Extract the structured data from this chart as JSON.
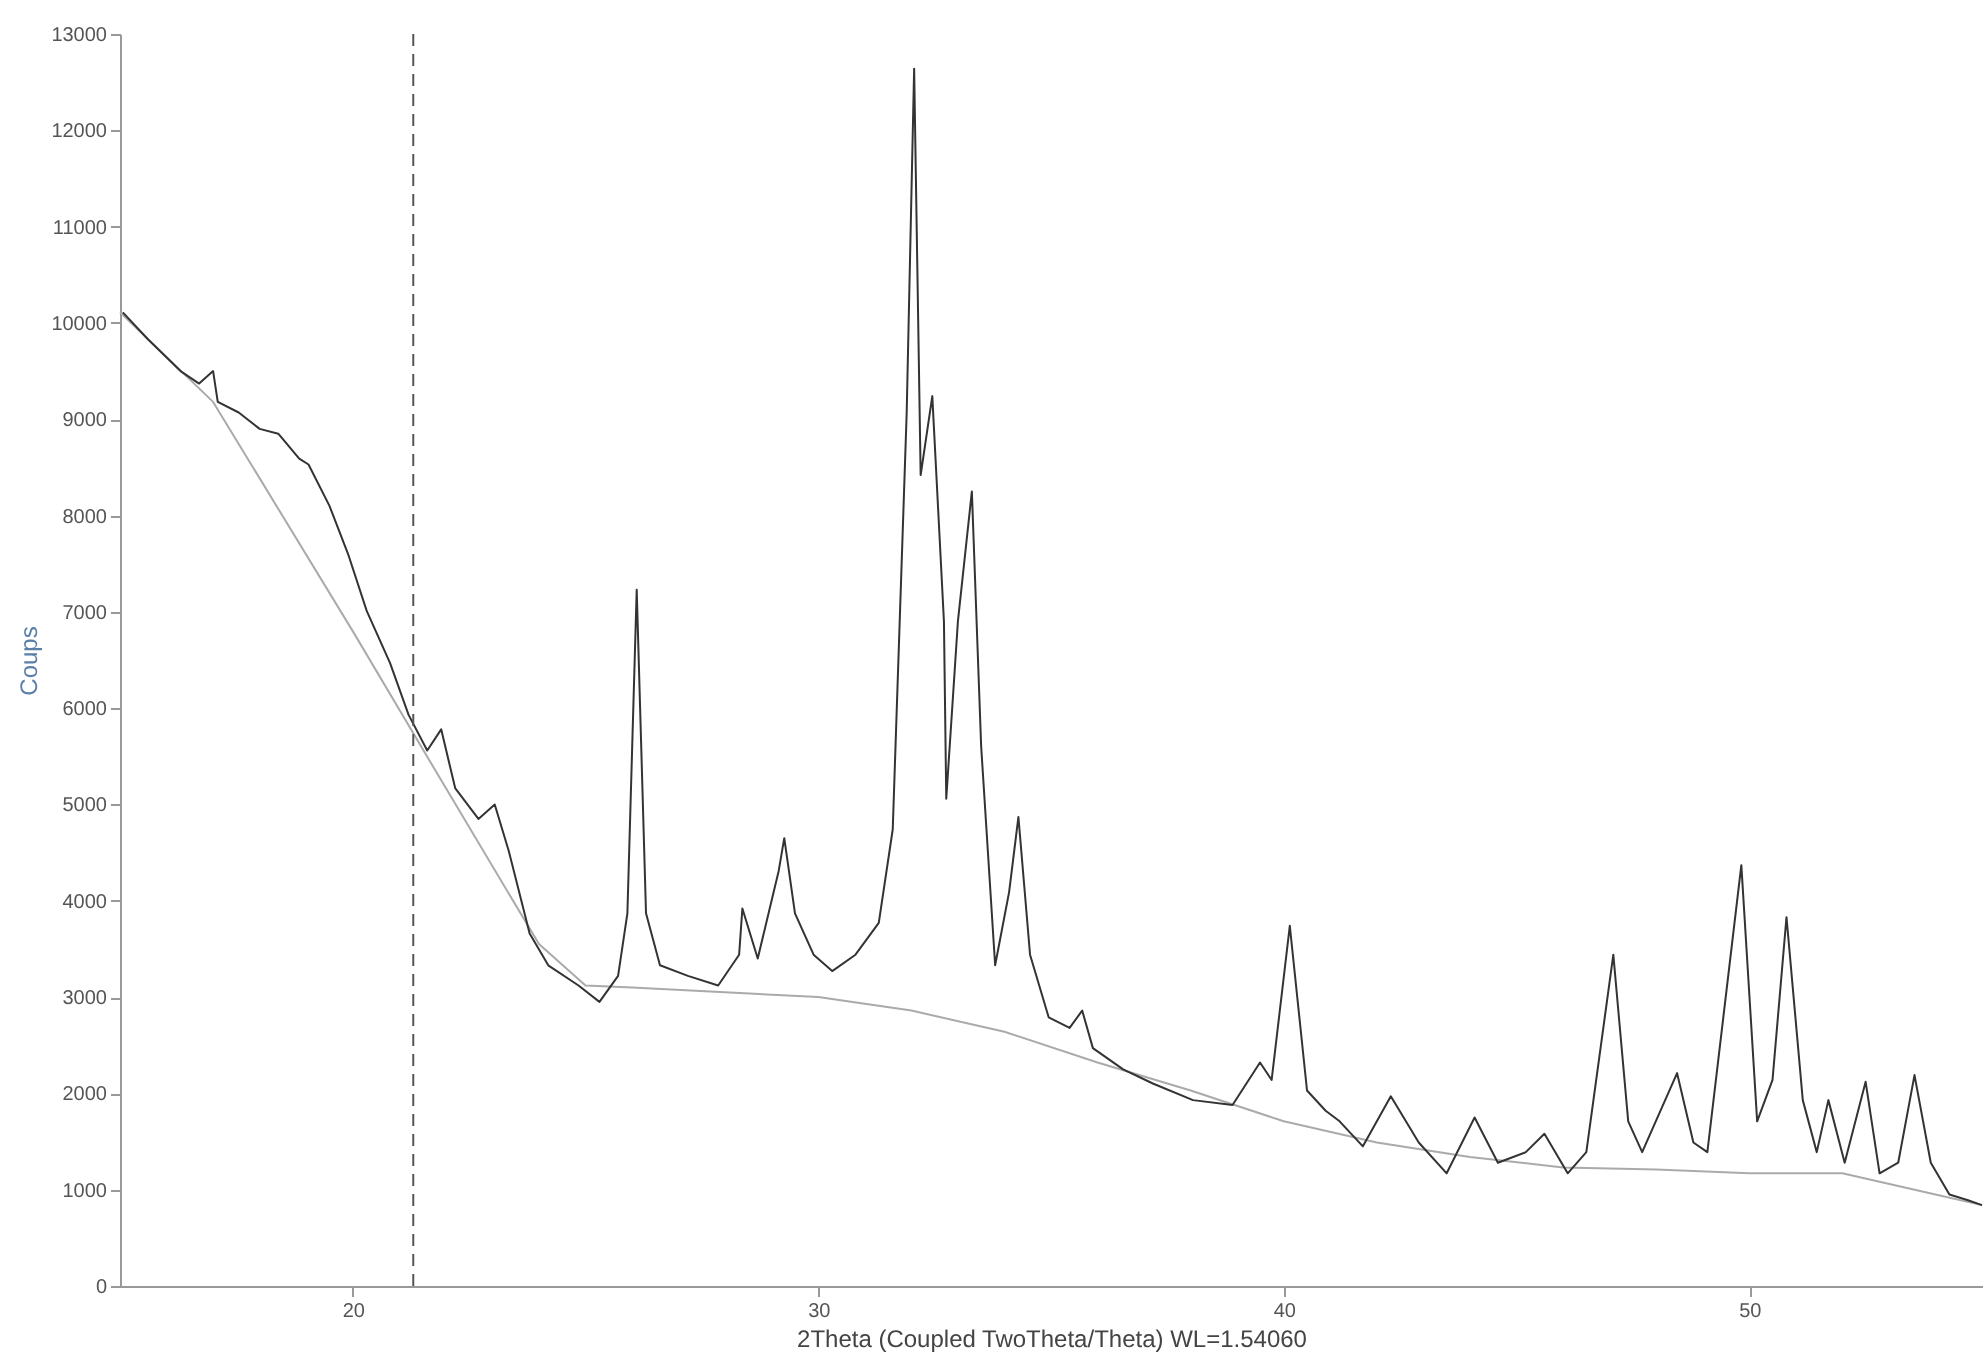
{
  "chart_data": {
    "type": "line",
    "xlabel": "2Theta (Coupled TwoTheta/Theta) WL=1.54060",
    "ylabel": "Coups",
    "xlim": [
      15,
      55
    ],
    "xticks": [
      20,
      30,
      40,
      50
    ],
    "ylim": [
      0,
      13000
    ],
    "yticks": [
      0,
      1000,
      2000,
      3000,
      4000,
      5000,
      6000,
      7000,
      8000,
      9000,
      10000,
      11000,
      12000,
      13000
    ],
    "grid": false,
    "marker": "none",
    "line_style": "solid",
    "ref_lines": [
      {
        "axis": "x",
        "value": 21.3,
        "line_style": "dashed",
        "color": "#555555"
      }
    ],
    "series": [
      {
        "color": "#aaaaaa",
        "x": [
          15,
          17,
          20,
          22,
          24,
          25,
          26,
          30,
          32,
          34,
          36,
          38,
          40,
          42,
          44,
          46,
          48,
          50,
          52,
          54,
          55
        ],
        "values": [
          10110,
          9180,
          6800,
          5170,
          3550,
          3120,
          3100,
          3000,
          2860,
          2640,
          2320,
          2030,
          1710,
          1490,
          1340,
          1230,
          1210,
          1170,
          1170,
          950,
          840
        ]
      },
      {
        "color": "#333333",
        "x": [
          15.06,
          15.6,
          16.3,
          16.7,
          17.0,
          17.1,
          17.55,
          18.0,
          18.4,
          18.85,
          19.05,
          19.5,
          19.9,
          20.3,
          20.8,
          21.2,
          21.6,
          21.9,
          22.2,
          22.7,
          23.05,
          23.35,
          23.8,
          24.2,
          24.85,
          25.3,
          25.7,
          25.9,
          26.1,
          26.3,
          26.6,
          27.2,
          27.85,
          28.3,
          28.37,
          28.7,
          29.15,
          29.27,
          29.5,
          29.9,
          30.3,
          30.8,
          31.3,
          31.6,
          31.9,
          32.06,
          32.2,
          32.45,
          32.7,
          32.75,
          33.0,
          33.3,
          33.5,
          33.8,
          34.1,
          34.3,
          34.55,
          34.95,
          35.4,
          35.67,
          35.9,
          36.55,
          37.2,
          38.05,
          38.9,
          39.49,
          39.74,
          40.13,
          40.5,
          40.9,
          41.2,
          41.7,
          42.3,
          42.9,
          43.5,
          44.1,
          44.6,
          45.2,
          45.6,
          46.1,
          46.5,
          47.08,
          47.4,
          47.7,
          48.45,
          48.8,
          49.1,
          49.83,
          50.17,
          50.5,
          50.8,
          51.15,
          51.45,
          51.7,
          52.05,
          52.5,
          52.8,
          53.2,
          53.55,
          53.9,
          54.3,
          54.7,
          55
        ],
        "values": [
          10110,
          9830,
          9500,
          9370,
          9500,
          9180,
          9070,
          8900,
          8850,
          8590,
          8530,
          8100,
          7600,
          7010,
          6470,
          5930,
          5560,
          5780,
          5170,
          4850,
          5000,
          4520,
          3660,
          3330,
          3120,
          2950,
          3220,
          3870,
          7230,
          3870,
          3330,
          3220,
          3120,
          3440,
          3920,
          3400,
          4310,
          4650,
          3870,
          3440,
          3270,
          3440,
          3770,
          4740,
          9070,
          12640,
          8420,
          9240,
          6900,
          5060,
          6900,
          8250,
          5600,
          3330,
          4090,
          4870,
          3440,
          2790,
          2680,
          2860,
          2470,
          2250,
          2100,
          1930,
          1880,
          2320,
          2140,
          3740,
          2030,
          1820,
          1710,
          1450,
          1970,
          1490,
          1170,
          1750,
          1280,
          1390,
          1580,
          1170,
          1390,
          3440,
          1710,
          1390,
          2210,
          1490,
          1390,
          4370,
          1710,
          2140,
          3830,
          1930,
          1390,
          1930,
          1280,
          2120,
          1170,
          1280,
          2190,
          1280,
          950,
          890,
          840
        ]
      }
    ]
  }
}
